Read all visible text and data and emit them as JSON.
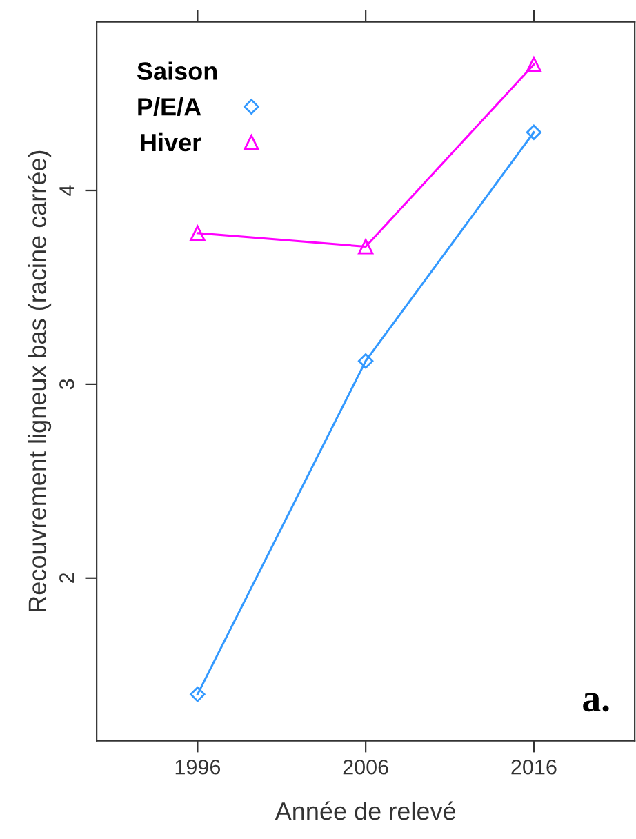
{
  "chart_data": {
    "type": "line",
    "xlabel": "Année de relevé",
    "ylabel": "Recouvrement ligneux bas (racine carrée)",
    "legend_title": "Saison",
    "legend": "top left",
    "x": [
      1996,
      2006,
      2016
    ],
    "series": [
      {
        "name": "P/E/A",
        "color": "#3399ff",
        "values": [
          1.4,
          3.12,
          4.3
        ],
        "marker": "diamond"
      },
      {
        "name": "Hiver",
        "color": "#ff00ff",
        "values": [
          3.78,
          3.71,
          4.65
        ],
        "marker": "triangle"
      }
    ],
    "xlim": [
      1990,
      2022
    ],
    "xticks": [
      1996,
      2006,
      2016
    ],
    "ylim": [
      1.16,
      4.87
    ],
    "yticks": [
      2,
      3,
      4
    ],
    "grid": false,
    "line_style": "solid",
    "annotations": [
      "a."
    ]
  }
}
